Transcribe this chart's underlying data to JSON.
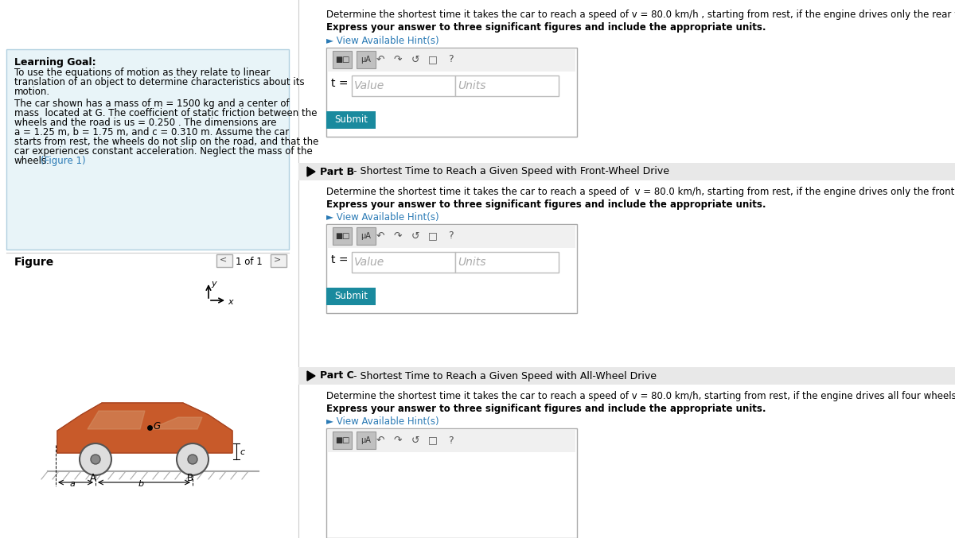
{
  "bg_color": "#f5f5f5",
  "page_bg": "#ffffff",
  "left_panel_bg": "#e8f4f8",
  "left_panel_border": "#b0d0e0",
  "learning_goal_title": "Learning Goal:",
  "learning_goal_line1": "To use the equations of motion as they relate to linear",
  "learning_goal_line2": "translation of an object to determine characteristics about its",
  "learning_goal_line3": "motion.",
  "prob_line1": "The car shown has a mass of m = 1500 kg and a center of",
  "prob_line2": "mass  located at G. The coefficient of static friction between the",
  "prob_line3": "wheels and the road is us = 0.250 . The dimensions are",
  "prob_line4": "a = 1.25 m, b = 1.75 m, and c = 0.310 m. Assume the car",
  "prob_line5": "starts from rest, the wheels do not slip on the road, and that the",
  "prob_line6": "car experiences constant acceleration. Neglect the mass of the",
  "prob_line7a": "wheels.",
  "prob_line7b": "(Figure 1)",
  "figure_label": "Figure",
  "figure_nav": "1 of 1",
  "part_a_line1": "Determine the shortest time it takes the car to reach a speed of v = 80.0 km/h , starting from rest, if the engine drives only the rear wheels.",
  "part_a_bold": "Express your answer to three significant figures and include the appropriate units.",
  "part_a_hint": "► View Available Hint(s)",
  "part_b_section": "Part B",
  "part_b_subtitle": " - Shortest Time to Reach a Given Speed with Front-Wheel Drive",
  "part_b_line1": "Determine the shortest time it takes the car to reach a speed of  v = 80.0 km/h, starting from rest, if the engine drives only the front wheels.",
  "part_b_bold": "Express your answer to three significant figures and include the appropriate units.",
  "part_b_hint": "► View Available Hint(s)",
  "part_c_section": "Part C",
  "part_c_subtitle": " - Shortest Time to Reach a Given Speed with All-Wheel Drive",
  "part_c_line1": "Determine the shortest time it takes the car to reach a speed of v = 80.0 km/h, starting from rest, if the engine drives all four wheels.",
  "part_c_bold": "Express your answer to three significant figures and include the appropriate units.",
  "part_c_hint": "► View Available Hint(s)",
  "t_label": "t =",
  "value_placeholder": "Value",
  "units_placeholder": "Units",
  "submit_label": "Submit",
  "submit_color": "#1a8a9e",
  "submit_text_color": "#ffffff",
  "hint_color": "#2a7ab5",
  "figure1_color": "#2a7ab5",
  "section_header_bg": "#e8e8e8",
  "input_border": "#aaaaaa",
  "toolbar_bg": "#f0f0f0",
  "toolbar_btn_bg": "#c0c0c0",
  "toolbar_btn_border": "#999999",
  "divider_color": "#cccccc",
  "car_body_color": "#c85a2a",
  "car_outline_color": "#a04020",
  "wheel_face": "#dddddd",
  "wheel_edge": "#555555",
  "ground_color": "#aaaaaa"
}
